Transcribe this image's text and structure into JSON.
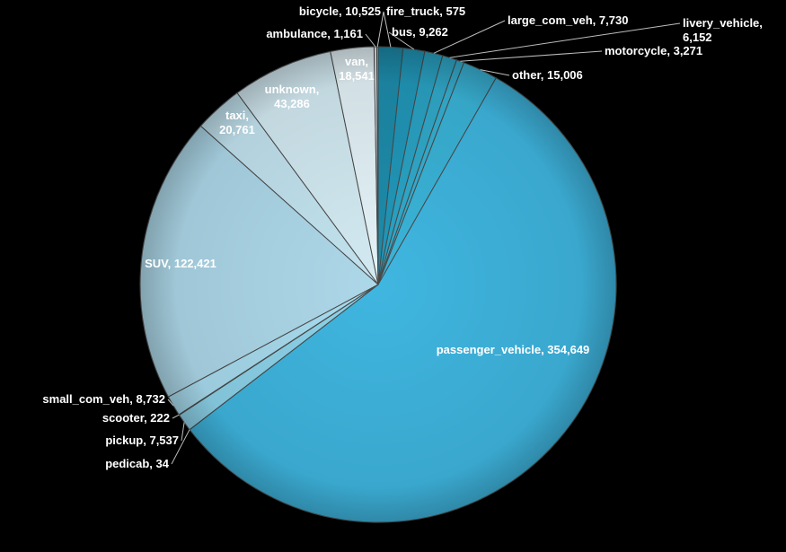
{
  "chart_data": {
    "type": "pie",
    "title": "",
    "start_category": "bicycle",
    "direction": "clockwise",
    "categories": [
      "bicycle",
      "bus",
      "large_com_veh",
      "livery_vehicle",
      "motorcycle",
      "other",
      "passenger_vehicle",
      "pedicab",
      "pickup",
      "scooter",
      "small_com_veh",
      "SUV",
      "taxi",
      "unknown",
      "van",
      "ambulance",
      "fire_truck"
    ],
    "values": [
      10525,
      9262,
      7730,
      6152,
      3271,
      15006,
      354649,
      34,
      7537,
      222,
      8732,
      122421,
      20761,
      43286,
      18541,
      1161,
      575
    ],
    "labels": [
      "bicycle, 10,525",
      "bus, 9,262",
      "large_com_veh, 7,730",
      "livery_vehicle, 6,152",
      "motorcycle, 3,271",
      "other, 15,006",
      "passenger_vehicle, 354,649",
      "pedicab, 34",
      "pickup, 7,537",
      "scooter, 222",
      "small_com_veh, 8,732",
      "SUV, 122,421",
      "taxi, 20,761",
      "unknown, 43,286",
      "van, 18,541",
      "ambulance, 1,161",
      "fire_truck, 575"
    ],
    "colors": [
      "#1d8cab",
      "#2197b9",
      "#2aa3c4",
      "#31aacb",
      "#36b0d2",
      "#3ab4d8",
      "#3fb6e0",
      "#6cc6e3",
      "#8dd3ea",
      "#9bd8ed",
      "#a8dcef",
      "#add8e9",
      "#c2e3ef",
      "#d3eaf2",
      "#e4f3f8",
      "#eef8fb",
      "#f6fbfd"
    ],
    "legend": "none"
  }
}
